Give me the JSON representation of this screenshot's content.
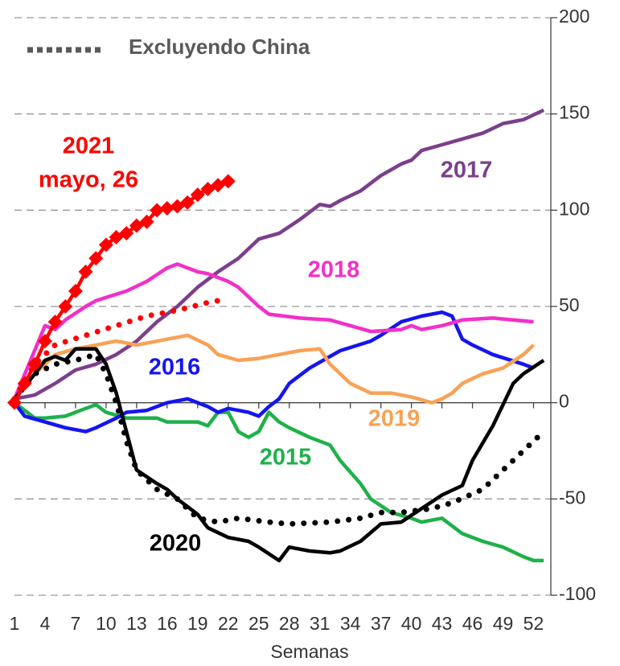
{
  "chart_data": {
    "type": "line",
    "xlabel": "Semanas",
    "xlim": [
      1,
      53.7
    ],
    "xticks": [
      1,
      4,
      7,
      10,
      13,
      16,
      19,
      22,
      25,
      28,
      31,
      34,
      37,
      40,
      43,
      46,
      49,
      52
    ],
    "ylim": [
      -100,
      200
    ],
    "yticks": [
      -100,
      -50,
      0,
      50,
      100,
      150,
      200
    ],
    "grid": true,
    "legend": "top-left",
    "legend_entry": {
      "name": "Excluyendo China",
      "color": "#595959"
    },
    "series": [
      {
        "name": "2015",
        "color": "#1fb14a",
        "style": "solid",
        "x": [
          1,
          3,
          4,
          6,
          8,
          9,
          10,
          12,
          15,
          16,
          19,
          20,
          21,
          22,
          23,
          24,
          25,
          26,
          27,
          28,
          30,
          32,
          33,
          35,
          36,
          38,
          40,
          41,
          42,
          43,
          44,
          45,
          47,
          49,
          51,
          52,
          53
        ],
        "values": [
          0,
          -8,
          -8,
          -7,
          -3,
          -1,
          -5,
          -8,
          -8,
          -10,
          -10,
          -12,
          -5,
          -5,
          -15,
          -18,
          -15,
          -5,
          -10,
          -13,
          -18,
          -22,
          -30,
          -42,
          -50,
          -57,
          -60,
          -62,
          -61,
          -60,
          -64,
          -68,
          -72,
          -75,
          -80,
          -82,
          -82
        ]
      },
      {
        "name": "2016",
        "color": "#1515f0",
        "style": "solid",
        "x": [
          1,
          2,
          4,
          6,
          8,
          9,
          11,
          12,
          14,
          16,
          18,
          20,
          21,
          22,
          24,
          25,
          26,
          27,
          28,
          30,
          33,
          36,
          37,
          39,
          41,
          43,
          44,
          45,
          46,
          48,
          51,
          52
        ],
        "values": [
          0,
          -7,
          -10,
          -13,
          -15,
          -13,
          -8,
          -5,
          -4,
          0,
          2,
          -2,
          -5,
          -3,
          -5,
          -7,
          -2,
          2,
          10,
          18,
          27,
          32,
          35,
          42,
          45,
          47,
          45,
          33,
          30,
          25,
          20,
          18
        ]
      },
      {
        "name": "2017",
        "color": "#7b3f8c",
        "style": "solid",
        "x": [
          1,
          3,
          5,
          7,
          9,
          11,
          13,
          15,
          17,
          19,
          21,
          23,
          25,
          27,
          29,
          31,
          32,
          33,
          35,
          37,
          39,
          40,
          41,
          43,
          45,
          47,
          49,
          51,
          53
        ],
        "values": [
          2,
          4,
          10,
          17,
          20,
          25,
          32,
          42,
          50,
          60,
          68,
          75,
          85,
          88,
          95,
          103,
          102,
          105,
          110,
          118,
          124,
          126,
          131,
          134,
          137,
          140,
          145,
          147,
          152
        ]
      },
      {
        "name": "2018",
        "color": "#f230c8",
        "style": "solid",
        "x": [
          1,
          4,
          5,
          6,
          8,
          9,
          12,
          14,
          16,
          17,
          18,
          19,
          20,
          22,
          23,
          25,
          26,
          29,
          32,
          34,
          36,
          39,
          40,
          41,
          43,
          45,
          48,
          50,
          52
        ],
        "values": [
          2,
          40,
          38,
          43,
          50,
          53,
          58,
          63,
          70,
          72,
          70,
          68,
          67,
          63,
          60,
          50,
          46,
          44,
          43,
          40,
          37,
          38,
          40,
          38,
          40,
          43,
          44,
          43,
          42
        ]
      },
      {
        "name": "2019",
        "color": "#f8a256",
        "style": "solid",
        "x": [
          1,
          3,
          5,
          7,
          9,
          11,
          13,
          16,
          18,
          20,
          21,
          23,
          25,
          27,
          29,
          31,
          32,
          34,
          36,
          38,
          40,
          42,
          43,
          44,
          45,
          47,
          49,
          51,
          52
        ],
        "values": [
          2,
          15,
          25,
          28,
          30,
          32,
          30,
          33,
          35,
          30,
          25,
          22,
          23,
          25,
          27,
          28,
          20,
          10,
          5,
          5,
          3,
          0,
          2,
          5,
          10,
          15,
          18,
          25,
          30
        ]
      },
      {
        "name": "2020",
        "color": "#000000",
        "style": "solid",
        "x": [
          1,
          3,
          4,
          5,
          6,
          7,
          9,
          10,
          11,
          12,
          13,
          15,
          16,
          17,
          19,
          20,
          22,
          24,
          25,
          27,
          28,
          30,
          32,
          33,
          35,
          37,
          39,
          41,
          43,
          45,
          46,
          48,
          50,
          51,
          53
        ],
        "values": [
          2,
          15,
          22,
          24,
          22,
          28,
          28,
          20,
          5,
          -15,
          -35,
          -42,
          -45,
          -50,
          -58,
          -65,
          -70,
          -72,
          -75,
          -82,
          -75,
          -77,
          -78,
          -77,
          -72,
          -63,
          -62,
          -55,
          -48,
          -43,
          -30,
          -12,
          10,
          15,
          22
        ]
      },
      {
        "color": "#000000",
        "style": "dotted",
        "x": [
          1,
          3,
          5,
          7,
          9,
          10,
          11,
          12,
          13,
          15,
          17,
          19,
          21,
          23,
          26,
          28,
          32,
          35,
          37,
          39,
          42,
          44,
          47,
          49,
          51,
          53
        ],
        "values": [
          2,
          15,
          20,
          22,
          25,
          15,
          0,
          -20,
          -35,
          -45,
          -50,
          -60,
          -62,
          -60,
          -62,
          -63,
          -62,
          -60,
          -57,
          -57,
          -55,
          -52,
          -45,
          -35,
          -25,
          -15
        ]
      },
      {
        "color": "#ff0000",
        "style": "dotted",
        "x": [
          1,
          3,
          5,
          8,
          11,
          14,
          17,
          20,
          21
        ],
        "values": [
          2,
          20,
          30,
          35,
          40,
          45,
          48,
          52,
          53
        ]
      },
      {
        "name": "2021",
        "note": "mayo, 26",
        "color": "#ff0000",
        "style": "solid",
        "marker": "diamond",
        "x": [
          1,
          2,
          3,
          4,
          5,
          6,
          7,
          8,
          9,
          10,
          11,
          12,
          13,
          14,
          15,
          16,
          17,
          18,
          19,
          20,
          21,
          22
        ],
        "values": [
          0,
          10,
          20,
          32,
          42,
          50,
          58,
          68,
          75,
          82,
          86,
          88,
          92,
          94,
          100,
          101,
          102,
          104,
          108,
          111,
          113,
          115
        ]
      }
    ]
  }
}
